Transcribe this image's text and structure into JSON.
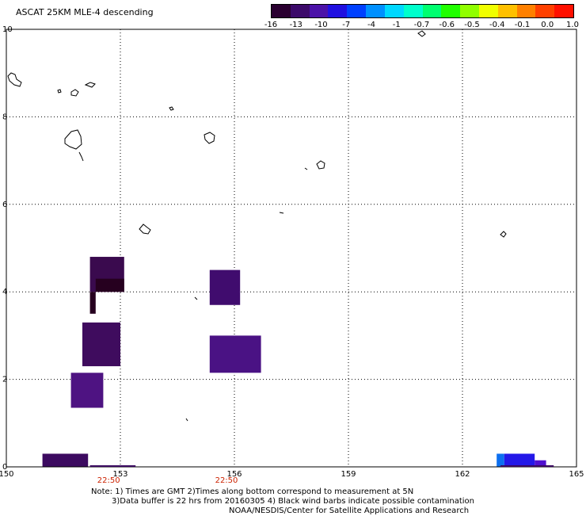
{
  "title": "ASCAT 25KM MLE-4 descending",
  "colorbar": {
    "colors": [
      "#2a0030",
      "#3c0a6a",
      "#4b12a8",
      "#2010e0",
      "#0040ff",
      "#0090ff",
      "#00d8ff",
      "#00ffcc",
      "#00ff70",
      "#20ff00",
      "#90ff00",
      "#f0ff00",
      "#ffc000",
      "#ff8000",
      "#ff4000",
      "#ff1000"
    ],
    "labels": [
      "-16",
      "-13",
      "-10",
      "-7",
      "-4",
      "-1",
      "-0.7",
      "-0.6",
      "-0.5",
      "-0.4",
      "-0.1",
      "0.0",
      "1.0"
    ]
  },
  "axes": {
    "x_ticks": [
      "150",
      "153",
      "156",
      "159",
      "162",
      "165"
    ],
    "y_ticks": [
      "0",
      "2",
      "4",
      "6",
      "8",
      "10"
    ],
    "x_range": [
      150,
      165
    ],
    "y_range": [
      0,
      10
    ]
  },
  "time_labels": [
    {
      "text": "22:50",
      "lon": 152.9
    },
    {
      "text": "22:50",
      "lon": 156.0
    }
  ],
  "swaths": [
    {
      "lon": [
        152.2,
        153.1
      ],
      "lat": [
        4.0,
        4.8
      ],
      "color": "#3a0a4e"
    },
    {
      "lon": [
        152.2,
        152.35
      ],
      "lat": [
        3.5,
        4.0
      ],
      "color": "#26001f"
    },
    {
      "lon": [
        152.35,
        153.1
      ],
      "lat": [
        4.0,
        4.3
      ],
      "color": "#26001f"
    },
    {
      "lon": [
        152.0,
        153.0
      ],
      "lat": [
        2.3,
        3.3
      ],
      "color": "#3f0c5e"
    },
    {
      "lon": [
        151.7,
        152.55
      ],
      "lat": [
        1.35,
        2.15
      ],
      "color": "#4e1382"
    },
    {
      "lon": [
        150.95,
        152.15
      ],
      "lat": [
        0.0,
        0.3
      ],
      "color": "#3c0a60"
    },
    {
      "lon": [
        155.35,
        156.15
      ],
      "lat": [
        3.7,
        4.5
      ],
      "color": "#400c6e"
    },
    {
      "lon": [
        155.35,
        156.7
      ],
      "lat": [
        2.15,
        3.0
      ],
      "color": "#4a1284"
    },
    {
      "lon": [
        162.9,
        163.1
      ],
      "lat": [
        0.0,
        0.3
      ],
      "color": "#0d6ff0"
    },
    {
      "lon": [
        163.1,
        163.9
      ],
      "lat": [
        0.0,
        0.3
      ],
      "color": "#2418e8"
    },
    {
      "lon": [
        163.9,
        164.2
      ],
      "lat": [
        0.0,
        0.15
      ],
      "color": "#5010d0"
    }
  ],
  "notes": [
    "Note: 1) Times are GMT 2)Times along bottom correspond to measurement at 5N",
    "3)Data buffer is 22 hrs from 20160305 4) Black wind barbs indicate possible contamination",
    "NOAA/NESDIS/Center for Satellite Applications and Research"
  ]
}
